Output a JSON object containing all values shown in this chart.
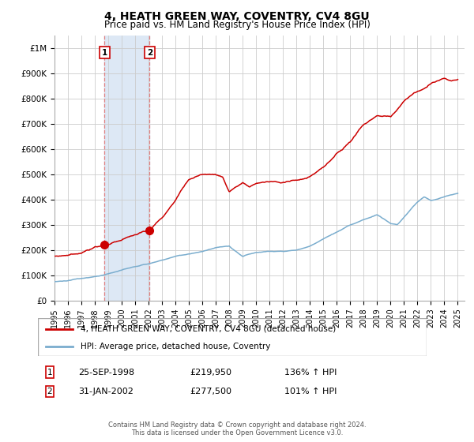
{
  "title": "4, HEATH GREEN WAY, COVENTRY, CV4 8GU",
  "subtitle": "Price paid vs. HM Land Registry's House Price Index (HPI)",
  "title_fontsize": 10,
  "subtitle_fontsize": 8.5,
  "ylim": [
    0,
    1050000
  ],
  "xlim_start": 1995.0,
  "xlim_end": 2025.5,
  "yticks": [
    0,
    100000,
    200000,
    300000,
    400000,
    500000,
    600000,
    700000,
    800000,
    900000,
    1000000
  ],
  "ytick_labels": [
    "£0",
    "£100K",
    "£200K",
    "£300K",
    "£400K",
    "£500K",
    "£600K",
    "£700K",
    "£800K",
    "£900K",
    "£1M"
  ],
  "xticks": [
    1995,
    1996,
    1997,
    1998,
    1999,
    2000,
    2001,
    2002,
    2003,
    2004,
    2005,
    2006,
    2007,
    2008,
    2009,
    2010,
    2011,
    2012,
    2013,
    2014,
    2015,
    2016,
    2017,
    2018,
    2019,
    2020,
    2021,
    2022,
    2023,
    2024,
    2025
  ],
  "red_color": "#cc0000",
  "blue_color": "#7aadce",
  "vline_color": "#e08080",
  "shade_color": "#dde8f5",
  "sale1_x": 1998.73,
  "sale1_y": 219950,
  "sale2_x": 2002.08,
  "sale2_y": 277500,
  "sale1_date": "25-SEP-1998",
  "sale1_price": "£219,950",
  "sale1_hpi": "136% ↑ HPI",
  "sale2_date": "31-JAN-2002",
  "sale2_price": "£277,500",
  "sale2_hpi": "101% ↑ HPI",
  "legend_line1": "4, HEATH GREEN WAY, COVENTRY, CV4 8GU (detached house)",
  "legend_line2": "HPI: Average price, detached house, Coventry",
  "footer": "Contains HM Land Registry data © Crown copyright and database right 2024.\nThis data is licensed under the Open Government Licence v3.0.",
  "background_color": "#ffffff",
  "grid_color": "#cccccc",
  "red_anchors_x": [
    1995.0,
    1996.0,
    1997.0,
    1998.0,
    1998.73,
    1999.5,
    2000.5,
    2001.5,
    2002.08,
    2003.0,
    2004.0,
    2005.0,
    2006.0,
    2007.0,
    2007.5,
    2008.0,
    2008.5,
    2009.0,
    2009.5,
    2010.0,
    2011.0,
    2012.0,
    2013.0,
    2014.0,
    2015.0,
    2016.0,
    2017.0,
    2018.0,
    2019.0,
    2020.0,
    2021.0,
    2022.0,
    2022.5,
    2023.0,
    2024.0,
    2024.5,
    2025.0
  ],
  "red_anchors_y": [
    175000,
    180000,
    190000,
    210000,
    219950,
    230000,
    250000,
    270000,
    277500,
    330000,
    400000,
    480000,
    500000,
    500000,
    490000,
    430000,
    450000,
    465000,
    450000,
    465000,
    470000,
    470000,
    475000,
    490000,
    530000,
    580000,
    630000,
    700000,
    730000,
    730000,
    790000,
    830000,
    840000,
    860000,
    880000,
    870000,
    875000
  ],
  "blue_anchors_x": [
    1995.0,
    1996.0,
    1997.0,
    1998.0,
    1999.0,
    2000.0,
    2001.0,
    2002.0,
    2003.0,
    2004.0,
    2005.0,
    2006.0,
    2007.0,
    2008.0,
    2008.5,
    2009.0,
    2009.5,
    2010.0,
    2011.0,
    2012.0,
    2013.0,
    2014.0,
    2015.0,
    2016.0,
    2017.0,
    2018.0,
    2019.0,
    2020.0,
    2020.5,
    2021.0,
    2022.0,
    2022.5,
    2023.0,
    2024.0,
    2025.0
  ],
  "blue_anchors_y": [
    75000,
    80000,
    88000,
    95000,
    105000,
    120000,
    135000,
    145000,
    160000,
    175000,
    185000,
    195000,
    210000,
    215000,
    195000,
    175000,
    185000,
    190000,
    195000,
    195000,
    200000,
    215000,
    245000,
    270000,
    300000,
    320000,
    340000,
    305000,
    300000,
    330000,
    390000,
    410000,
    395000,
    410000,
    425000
  ]
}
